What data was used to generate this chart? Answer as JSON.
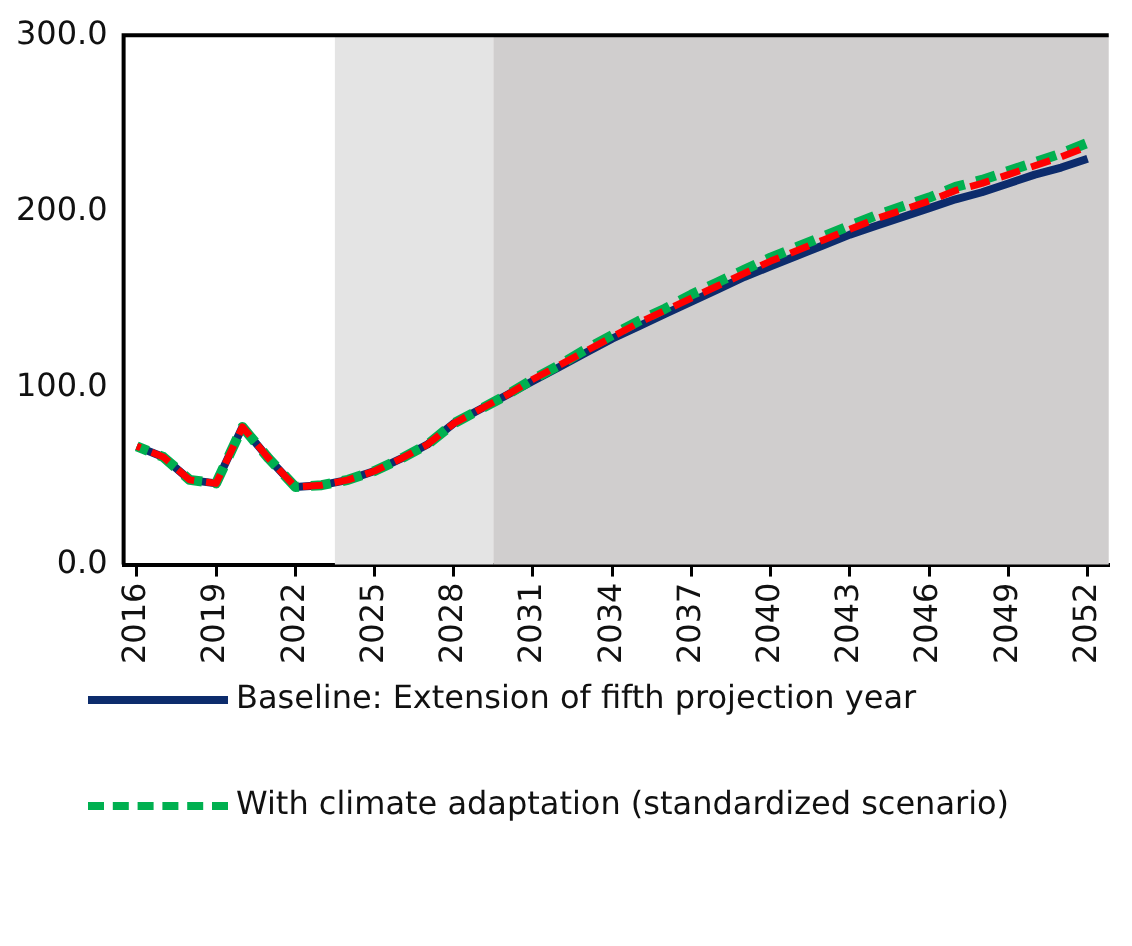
{
  "chart_data": {
    "type": "line",
    "x": [
      2016,
      2017,
      2018,
      2019,
      2020,
      2021,
      2022,
      2023,
      2024,
      2025,
      2026,
      2027,
      2028,
      2029,
      2030,
      2031,
      2032,
      2033,
      2034,
      2035,
      2036,
      2037,
      2038,
      2039,
      2040,
      2041,
      2042,
      2043,
      2044,
      2045,
      2046,
      2047,
      2048,
      2049,
      2050,
      2051,
      2052
    ],
    "series": [
      {
        "name": "Baseline: Extension of fifth projection year",
        "color": "#0d2c6c",
        "line_style": "solid",
        "values": [
          67,
          61,
          48,
          46,
          78,
          60,
          44,
          45,
          48,
          53,
          60,
          68,
          80,
          88,
          96,
          104,
          112,
          120,
          128,
          135,
          142,
          149,
          156,
          163,
          169,
          175,
          181,
          187,
          192,
          197,
          202,
          207,
          211,
          216,
          221,
          225,
          230
        ]
      },
      {
        "name": "With climate adaptation (standardized scenario)",
        "color": "#00b050",
        "line_style": "dashed",
        "values": [
          67,
          61,
          48,
          46,
          78,
          60,
          44,
          45,
          48,
          53,
          60,
          68,
          80,
          88,
          96,
          105,
          113,
          122,
          130,
          138,
          145,
          153,
          160,
          167,
          174,
          180,
          186,
          192,
          198,
          203,
          208,
          214,
          218,
          223,
          228,
          233,
          239
        ]
      },
      {
        "color": "#ff0000",
        "line_style": "dashed",
        "values": [
          67,
          61,
          48,
          46,
          78,
          60,
          44,
          45,
          48,
          53,
          60,
          68,
          80,
          88,
          96,
          105,
          113,
          121,
          129,
          137,
          144,
          151,
          158,
          165,
          172,
          178,
          184,
          190,
          196,
          201,
          206,
          212,
          216,
          221,
          226,
          231,
          237
        ]
      }
    ],
    "xlim": [
      2015.5,
      2052.8
    ],
    "xticks": [
      2016,
      2019,
      2022,
      2025,
      2028,
      2031,
      2034,
      2037,
      2040,
      2043,
      2046,
      2049,
      2052
    ],
    "ylim": [
      0,
      300
    ],
    "yticks": [
      {
        "value": 0,
        "label": "0.0"
      },
      {
        "value": 100,
        "label": "100.0"
      },
      {
        "value": 200,
        "label": "200.0"
      },
      {
        "value": 300,
        "label": "300.0"
      }
    ],
    "bands": [
      {
        "axis": "x",
        "from": 2023.5,
        "to": 2029.5,
        "color": "#e4e4e4"
      },
      {
        "axis": "x",
        "from": 2029.5,
        "to": 2052.8,
        "color": "#d0cece"
      }
    ],
    "grid": false,
    "legend": "bottom"
  }
}
